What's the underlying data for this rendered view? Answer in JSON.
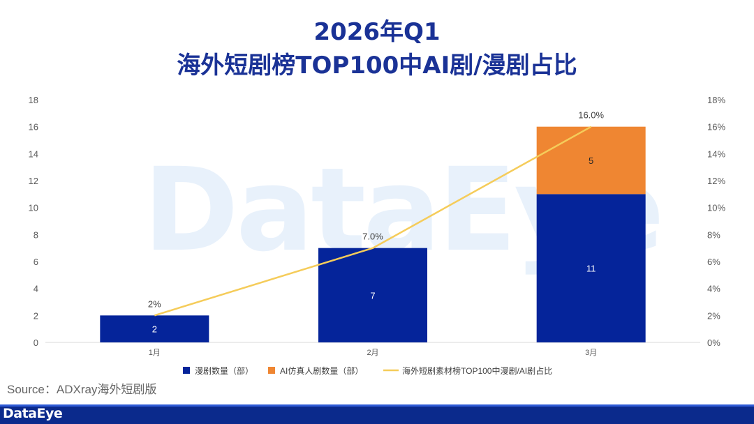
{
  "title_line1": "2026年Q1",
  "title_line2": "海外短剧榜TOP100中AI剧/漫剧占比",
  "watermark": "DataEye",
  "source": "Source：ADXray海外短剧版",
  "brand": "DataEye",
  "colors": {
    "manju": "#05249a",
    "ai": "#ef8632",
    "line": "#f5cc5a",
    "title": "#1a3296"
  },
  "chart_data": {
    "type": "bar",
    "stacked": true,
    "categories": [
      "1月",
      "2月",
      "3月"
    ],
    "series": [
      {
        "name": "漫剧数量（部）",
        "values": [
          2,
          7,
          11
        ],
        "labels": [
          "2",
          "7",
          "11"
        ]
      },
      {
        "name": "AI仿真人剧数量（部）",
        "values": [
          0,
          0,
          5
        ],
        "labels": [
          "",
          "",
          "5"
        ]
      }
    ],
    "line_series": {
      "name": "海外短剧素材榜TOP100中漫剧/AI剧占比",
      "values": [
        2,
        7,
        16
      ],
      "labels": [
        "2%",
        "7.0%",
        "16.0%"
      ],
      "axis": "right"
    },
    "y_left": {
      "min": 0,
      "max": 18,
      "step": 2,
      "ticks": [
        "0",
        "2",
        "4",
        "6",
        "8",
        "10",
        "12",
        "14",
        "16",
        "18"
      ]
    },
    "y_right": {
      "min": 0,
      "max": 18,
      "step": 2,
      "ticks": [
        "0%",
        "2%",
        "4%",
        "6%",
        "8%",
        "10%",
        "12%",
        "14%",
        "16%",
        "18%"
      ]
    },
    "grid": false,
    "legend_position": "bottom"
  }
}
